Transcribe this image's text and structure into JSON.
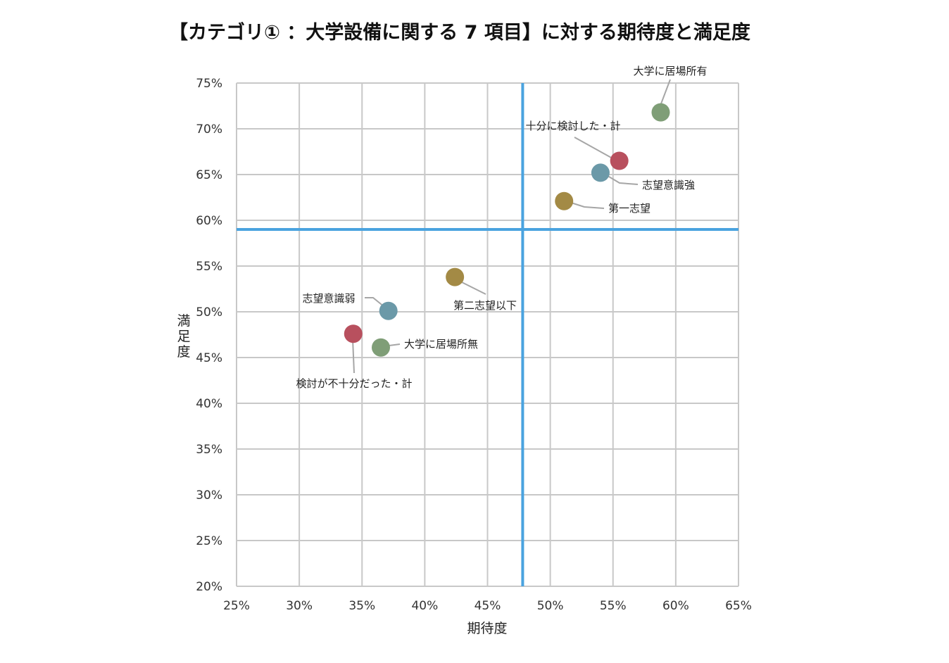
{
  "title": "【カテゴリ① ：大学設備に関する 7 項目】に対する期待度と満足度",
  "chart_data": {
    "type": "scatter",
    "title": "【カテゴリ① ：大学設備に関する 7 項目】に対する期待度と満足度",
    "xlabel": "期待度",
    "ylabel": "満足度",
    "xlim": [
      0.25,
      0.65
    ],
    "ylim": [
      0.2,
      0.75
    ],
    "xticks": [
      "25%",
      "30%",
      "35%",
      "40%",
      "45%",
      "50%",
      "55%",
      "60%",
      "65%"
    ],
    "yticks": [
      "75%",
      "70%",
      "65%",
      "60%",
      "55%",
      "50%",
      "45%",
      "40%",
      "35%",
      "30%",
      "25%",
      "20%"
    ],
    "grid": true,
    "reference_lines": {
      "x": 0.478,
      "y": 0.59,
      "color": "#4aa3df"
    },
    "points": [
      {
        "label": "大学に居場所有",
        "x": 0.588,
        "y": 0.718,
        "color": "#7f9e77"
      },
      {
        "label": "十分に検討した・計",
        "x": 0.555,
        "y": 0.665,
        "color": "#b8505e"
      },
      {
        "label": "志望意識強",
        "x": 0.54,
        "y": 0.652,
        "color": "#6b99a8"
      },
      {
        "label": "第一志望",
        "x": 0.511,
        "y": 0.621,
        "color": "#a38a45"
      },
      {
        "label": "第二志望以下",
        "x": 0.424,
        "y": 0.538,
        "color": "#a38a45"
      },
      {
        "label": "志望意識弱",
        "x": 0.371,
        "y": 0.501,
        "color": "#6b99a8"
      },
      {
        "label": "検討が不十分だった・計",
        "x": 0.343,
        "y": 0.476,
        "color": "#b8505e"
      },
      {
        "label": "大学に居場所無",
        "x": 0.365,
        "y": 0.461,
        "color": "#7f9e77"
      }
    ]
  }
}
